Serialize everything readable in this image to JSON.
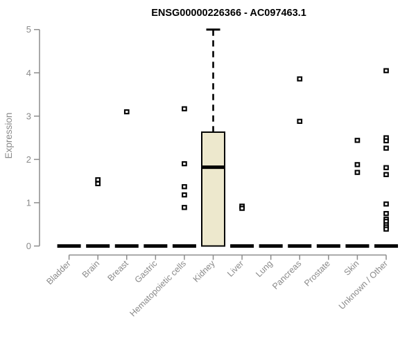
{
  "chart": {
    "title": "ENSG00000226366 - AC097463.1",
    "ylabel": "Expression"
  },
  "chart_data": {
    "type": "box",
    "title": "ENSG00000226366 - AC097463.1",
    "xlabel": "",
    "ylabel": "Expression",
    "ylim": [
      0,
      5
    ],
    "yticks": [
      0,
      1,
      2,
      3,
      4,
      5
    ],
    "grid": false,
    "legend": false,
    "categories": [
      "Bladder",
      "Brain",
      "Breast",
      "Gastric",
      "Hematopoietic cells",
      "Kidney",
      "Liver",
      "Lung",
      "Pancreas",
      "Prostate",
      "Skin",
      "Unknown / Other"
    ],
    "boxes": [
      {
        "category": "Bladder",
        "min": 0,
        "q1": 0,
        "median": 0,
        "q3": 0,
        "max": 0,
        "outliers": []
      },
      {
        "category": "Brain",
        "min": 0,
        "q1": 0,
        "median": 0,
        "q3": 0,
        "max": 0,
        "outliers": [
          1.53,
          1.44
        ]
      },
      {
        "category": "Breast",
        "min": 0,
        "q1": 0,
        "median": 0,
        "q3": 0,
        "max": 0,
        "outliers": [
          3.1
        ]
      },
      {
        "category": "Gastric",
        "min": 0,
        "q1": 0,
        "median": 0,
        "q3": 0,
        "max": 0,
        "outliers": []
      },
      {
        "category": "Hematopoietic cells",
        "min": 0,
        "q1": 0,
        "median": 0,
        "q3": 0,
        "max": 0,
        "outliers": [
          3.17,
          1.9,
          1.37,
          1.18,
          0.89
        ]
      },
      {
        "category": "Kidney",
        "min": 0,
        "q1": 0,
        "median": 1.82,
        "q3": 2.63,
        "max": 5.0,
        "outliers": []
      },
      {
        "category": "Liver",
        "min": 0,
        "q1": 0,
        "median": 0,
        "q3": 0,
        "max": 0,
        "outliers": [
          0.92,
          0.87
        ]
      },
      {
        "category": "Lung",
        "min": 0,
        "q1": 0,
        "median": 0,
        "q3": 0,
        "max": 0,
        "outliers": []
      },
      {
        "category": "Pancreas",
        "min": 0,
        "q1": 0,
        "median": 0,
        "q3": 0,
        "max": 0,
        "outliers": [
          3.86,
          2.88
        ]
      },
      {
        "category": "Prostate",
        "min": 0,
        "q1": 0,
        "median": 0,
        "q3": 0,
        "max": 0,
        "outliers": []
      },
      {
        "category": "Skin",
        "min": 0,
        "q1": 0,
        "median": 0,
        "q3": 0,
        "max": 0,
        "outliers": [
          2.44,
          1.88,
          1.7
        ]
      },
      {
        "category": "Unknown / Other",
        "min": 0,
        "q1": 0,
        "median": 0,
        "q3": 0,
        "max": 0,
        "outliers": [
          4.05,
          2.5,
          2.43,
          2.26,
          1.81,
          1.65,
          0.97,
          0.75,
          0.62,
          0.57,
          0.49,
          0.44,
          0.39
        ]
      }
    ],
    "colors": {
      "background": "#ffffff",
      "box_fill": "#EDE8CD",
      "box_stroke": "#000000",
      "median": "#000000",
      "whisker": "#000000",
      "outlier_stroke": "#000000",
      "outlier_fill": "#ffffff",
      "axis": "#8c8c8c",
      "tick_label": "#8a8a8a",
      "title": "#000000"
    }
  }
}
